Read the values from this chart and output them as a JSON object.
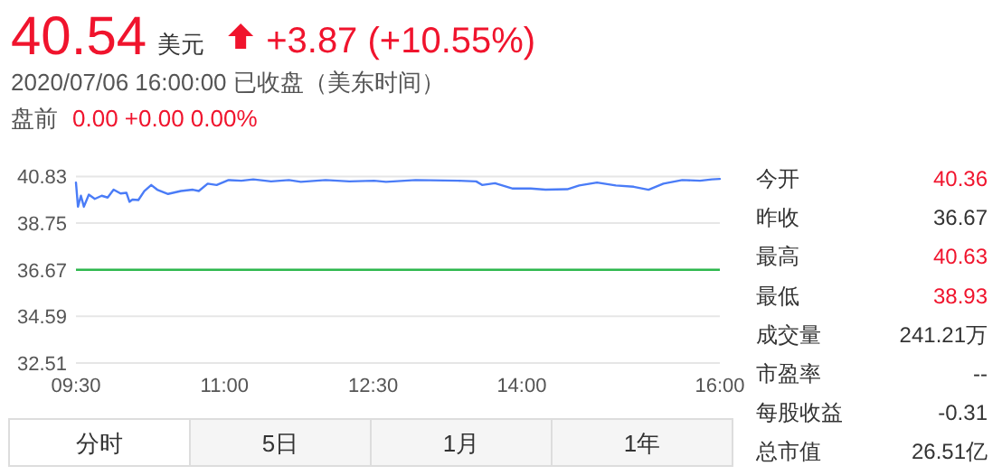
{
  "chart_data": [
    {
      "type": "line",
      "title": "40.54",
      "subtitle": "2020/07/06 16:00:00 已收盘（美东时间）",
      "annotations": [
        "美元",
        "+3.87 (+10.55%)",
        "盘前",
        "0.00 +0.00 0.00%",
        "分时",
        "5日",
        "1月",
        "1年"
      ],
      "x": [
        9.5,
        9.52,
        9.55,
        9.58,
        9.63,
        9.69,
        9.76,
        9.82,
        9.88,
        9.95,
        10.01,
        10.04,
        10.07,
        10.13,
        10.19,
        10.26,
        10.32,
        10.43,
        10.56,
        10.68,
        10.74,
        10.83,
        10.92,
        11.04,
        11.17,
        11.29,
        11.47,
        11.65,
        11.77,
        12.02,
        12.26,
        12.51,
        12.63,
        12.93,
        13.36,
        13.54,
        13.6,
        13.73,
        13.91,
        14.09,
        14.24,
        14.46,
        14.58,
        14.76,
        14.95,
        15.13,
        15.28,
        15.43,
        15.62,
        15.8,
        15.92,
        16.0
      ],
      "series": [
        {
          "color": "#4a7cf7",
          "values": [
            40.56,
            39.48,
            39.97,
            39.48,
            40.02,
            39.83,
            39.97,
            39.89,
            40.24,
            40.07,
            40.1,
            39.7,
            39.8,
            39.78,
            40.18,
            40.45,
            40.24,
            40.05,
            40.18,
            40.24,
            40.18,
            40.51,
            40.45,
            40.67,
            40.64,
            40.7,
            40.61,
            40.67,
            40.59,
            40.67,
            40.61,
            40.64,
            40.59,
            40.67,
            40.64,
            40.61,
            40.45,
            40.53,
            40.29,
            40.29,
            40.24,
            40.26,
            40.43,
            40.56,
            40.43,
            40.37,
            40.24,
            40.51,
            40.67,
            40.64,
            40.7,
            40.72
          ]
        }
      ],
      "xlim": [
        9.5,
        16
      ],
      "xticks": [
        {
          "value": 9.5,
          "label": "09:30"
        },
        {
          "value": 11,
          "label": "11:00"
        },
        {
          "value": 12.5,
          "label": "12:30"
        },
        {
          "value": 14,
          "label": "14:00"
        },
        {
          "value": 16,
          "label": "16:00"
        }
      ],
      "ylim": [
        32.51,
        40.83
      ],
      "yticks": [
        32.51,
        34.59,
        36.67,
        38.75,
        40.83
      ],
      "ref_lines": [
        {
          "axis": "y",
          "value": 36.67,
          "color": "#2db84d"
        }
      ],
      "grid": "y"
    },
    {
      "type": "other",
      "annotations": [
        "今开",
        "40.36",
        "昨收",
        "36.67",
        "最高",
        "40.63",
        "最低",
        "38.93",
        "成交量",
        "241.21万",
        "市盈率",
        "--",
        "每股收益",
        "-0.31",
        "总市值",
        "26.51亿"
      ],
      "colors": [
        "#f0142d",
        "#333333",
        "#f0142d",
        "#f0142d",
        "#333333",
        "#333333",
        "#333333",
        "#333333"
      ]
    }
  ]
}
